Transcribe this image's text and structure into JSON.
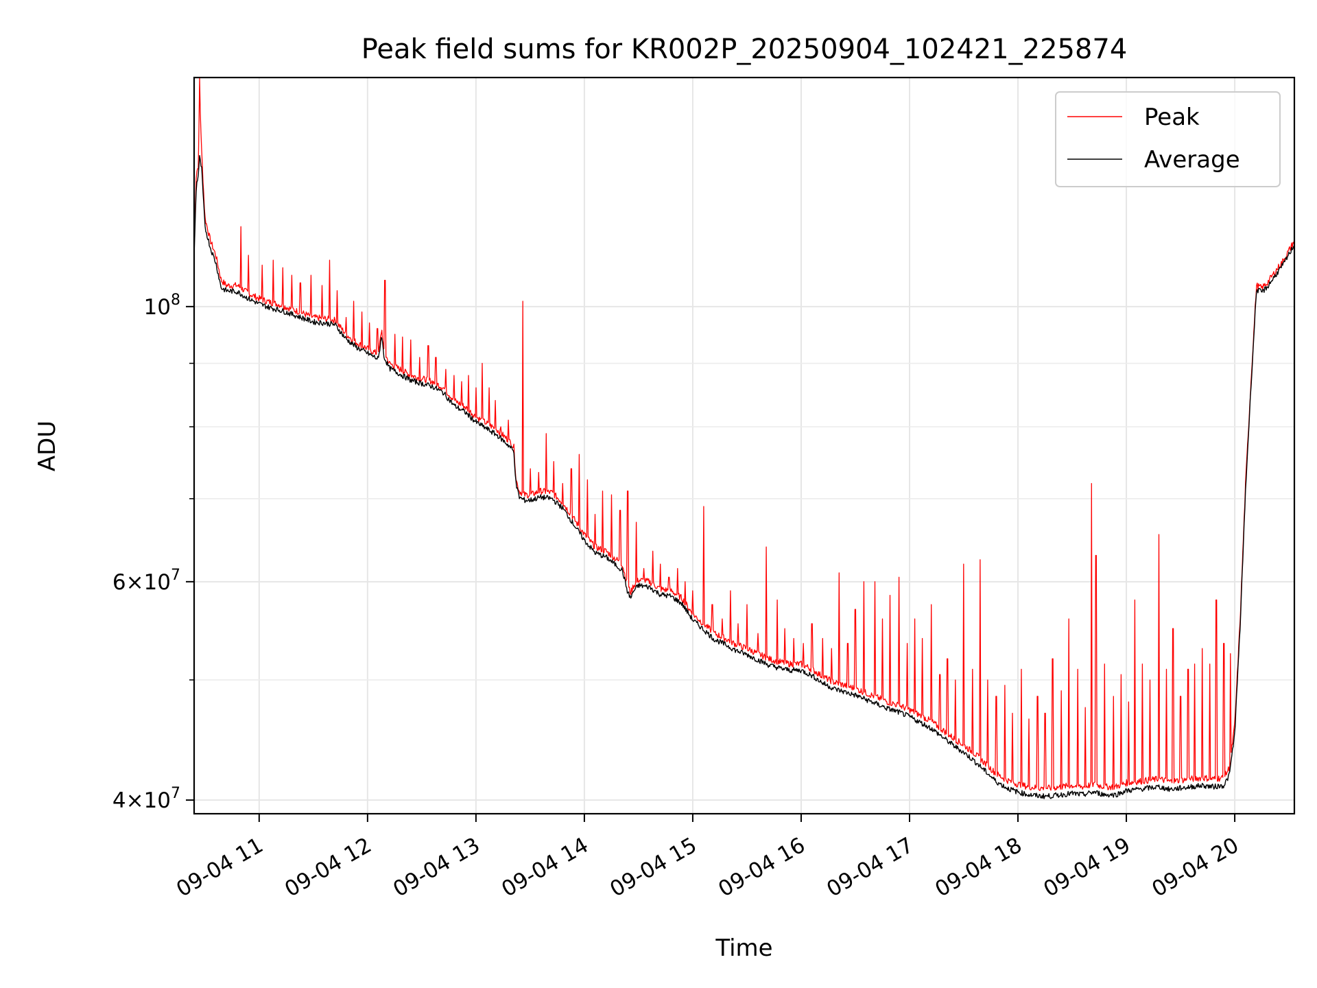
{
  "chart_data": {
    "type": "line",
    "title": "Peak field sums for KR002P_20250904_102421_225874",
    "xlabel": "Time",
    "ylabel": "ADU",
    "x_unit": "hours (2025-09-04 local time)",
    "xlim": [
      10.4,
      20.55
    ],
    "ylim": [
      39000000,
      153000000
    ],
    "yscale": "log",
    "grid": true,
    "x_ticks": [
      {
        "value": 11,
        "label": "09-04 11"
      },
      {
        "value": 12,
        "label": "09-04 12"
      },
      {
        "value": 13,
        "label": "09-04 13"
      },
      {
        "value": 14,
        "label": "09-04 14"
      },
      {
        "value": 15,
        "label": "09-04 15"
      },
      {
        "value": 16,
        "label": "09-04 16"
      },
      {
        "value": 17,
        "label": "09-04 17"
      },
      {
        "value": 18,
        "label": "09-04 18"
      },
      {
        "value": 19,
        "label": "09-04 19"
      },
      {
        "value": 20,
        "label": "09-04 20"
      }
    ],
    "y_ticks": [
      {
        "value": 40000000,
        "base": "4×10",
        "exp": "7"
      },
      {
        "value": 60000000,
        "base": "6×10",
        "exp": "7"
      },
      {
        "value": 100000000,
        "base": "10",
        "exp": "8"
      }
    ],
    "y_minor_ticks": [
      50000000,
      70000000,
      80000000,
      90000000
    ],
    "legend": {
      "position": "top-right"
    },
    "series": [
      {
        "name": "Peak",
        "color": "#ff0000",
        "x": [
          10.4,
          10.42,
          10.44,
          10.45,
          10.47,
          10.5,
          10.55,
          10.6,
          10.65,
          10.7,
          10.8,
          10.9,
          11.0,
          11.1,
          11.2,
          11.3,
          11.4,
          11.5,
          11.6,
          11.7,
          11.8,
          11.9,
          12.0,
          12.1,
          12.13,
          12.15,
          12.2,
          12.3,
          12.4,
          12.5,
          12.6,
          12.7,
          12.8,
          12.9,
          13.0,
          13.1,
          13.2,
          13.3,
          13.33,
          13.35,
          13.37,
          13.4,
          13.42,
          13.45,
          13.5,
          13.6,
          13.7,
          13.8,
          13.9,
          14.0,
          14.1,
          14.2,
          14.3,
          14.35,
          14.4,
          14.43,
          14.45,
          14.5,
          14.6,
          14.7,
          14.8,
          14.9,
          15.0,
          15.1,
          15.2,
          15.3,
          15.4,
          15.5,
          15.6,
          15.7,
          15.8,
          15.9,
          16.0,
          16.1,
          16.2,
          16.3,
          16.4,
          16.5,
          16.6,
          16.7,
          16.8,
          16.9,
          17.0,
          17.1,
          17.2,
          17.3,
          17.4,
          17.5,
          17.6,
          17.7,
          17.8,
          17.9,
          18.0,
          18.1,
          18.2,
          18.3,
          18.4,
          18.5,
          18.6,
          18.7,
          18.8,
          18.9,
          19.0,
          19.1,
          19.2,
          19.3,
          19.4,
          19.5,
          19.6,
          19.7,
          19.8,
          19.9,
          19.95,
          20.0,
          20.05,
          20.1,
          20.15,
          20.2,
          20.25,
          20.3,
          20.35,
          20.4,
          20.45,
          20.5,
          20.55
        ],
        "y": [
          112000000,
          128000000,
          130000000,
          150000000,
          133000000,
          118000000,
          113000000,
          110000000,
          105000000,
          104000000,
          104000000,
          102500000,
          101500000,
          100800000,
          100300000,
          99500000,
          98800000,
          98000000,
          97800000,
          97500000,
          95000000,
          93500000,
          92500000,
          91500000,
          96000000,
          92000000,
          90000000,
          89000000,
          88000000,
          87500000,
          87000000,
          86000000,
          84000000,
          83000000,
          81500000,
          80500000,
          79500000,
          78000000,
          77500000,
          77000000,
          72500000,
          71000000,
          70800000,
          70500000,
          70500000,
          71000000,
          70800000,
          69500000,
          67500000,
          65500000,
          64000000,
          63500000,
          62500000,
          62000000,
          59500000,
          58800000,
          59500000,
          60200000,
          60000000,
          59200000,
          59000000,
          58200000,
          56500000,
          55500000,
          54500000,
          54000000,
          53400000,
          53000000,
          52500000,
          52000000,
          51700000,
          51500000,
          51500000,
          51000000,
          50300000,
          49800000,
          49500000,
          49200000,
          48800000,
          48400000,
          48000000,
          47700000,
          47300000,
          46800000,
          46300000,
          45600000,
          44900000,
          44300000,
          43600000,
          42800000,
          42000000,
          41500000,
          41200000,
          41000000,
          40900000,
          40900000,
          41000000,
          41100000,
          41000000,
          41200000,
          41000000,
          41000000,
          41300000,
          41400000,
          41500000,
          41600000,
          41400000,
          41500000,
          41600000,
          41700000,
          41600000,
          41700000,
          42500000,
          46000000,
          56000000,
          72000000,
          87000000,
          104000000,
          103500000,
          104500000,
          106000000,
          107500000,
          109000000,
          111000000,
          113000000
        ]
      },
      {
        "name": "Average",
        "color": "#000000",
        "x": [
          10.4,
          10.42,
          10.44,
          10.45,
          10.47,
          10.5,
          10.55,
          10.6,
          10.65,
          10.7,
          10.8,
          10.9,
          11.0,
          11.1,
          11.2,
          11.3,
          11.4,
          11.5,
          11.6,
          11.7,
          11.8,
          11.9,
          12.0,
          12.1,
          12.13,
          12.15,
          12.2,
          12.3,
          12.4,
          12.5,
          12.6,
          12.7,
          12.8,
          12.9,
          13.0,
          13.1,
          13.2,
          13.3,
          13.33,
          13.35,
          13.37,
          13.4,
          13.42,
          13.45,
          13.5,
          13.6,
          13.7,
          13.8,
          13.9,
          14.0,
          14.1,
          14.2,
          14.3,
          14.35,
          14.4,
          14.43,
          14.45,
          14.5,
          14.6,
          14.7,
          14.8,
          14.9,
          15.0,
          15.1,
          15.2,
          15.3,
          15.4,
          15.5,
          15.6,
          15.7,
          15.8,
          15.9,
          16.0,
          16.1,
          16.2,
          16.3,
          16.4,
          16.5,
          16.6,
          16.7,
          16.8,
          16.9,
          17.0,
          17.1,
          17.2,
          17.3,
          17.4,
          17.5,
          17.6,
          17.7,
          17.8,
          17.9,
          18.0,
          18.1,
          18.2,
          18.3,
          18.4,
          18.5,
          18.6,
          18.7,
          18.8,
          18.9,
          19.0,
          19.1,
          19.2,
          19.3,
          19.4,
          19.5,
          19.6,
          19.7,
          19.8,
          19.9,
          19.95,
          20.0,
          20.05,
          20.1,
          20.15,
          20.2,
          20.25,
          20.3,
          20.35,
          20.4,
          20.45,
          20.5,
          20.55
        ],
        "y": [
          110000000,
          125000000,
          128000000,
          132000000,
          129000000,
          116000000,
          111500000,
          108500000,
          103500000,
          103000000,
          102800000,
          101500000,
          100500000,
          99800000,
          99300000,
          98600000,
          97900000,
          97200000,
          97000000,
          96700000,
          94200000,
          92700000,
          91700000,
          90700000,
          95000000,
          91200000,
          89200000,
          88200000,
          87200000,
          86700000,
          86200000,
          85200000,
          83200000,
          82200000,
          80700000,
          79700000,
          78700000,
          77300000,
          76800000,
          76300000,
          71800000,
          70200000,
          70000000,
          69800000,
          69800000,
          70200000,
          70000000,
          68800000,
          66800000,
          64800000,
          63300000,
          62800000,
          61800000,
          61300000,
          58800000,
          58200000,
          58900000,
          59600000,
          59400000,
          58600000,
          58400000,
          57600000,
          55900000,
          54900000,
          53900000,
          53400000,
          52800000,
          52400000,
          51900000,
          51400000,
          51100000,
          50900000,
          50900000,
          50400000,
          49700000,
          49200000,
          48900000,
          48600000,
          48200000,
          47800000,
          47400000,
          47100000,
          46700000,
          46200000,
          45700000,
          45000000,
          44300000,
          43700000,
          43000000,
          42200000,
          41400000,
          40900000,
          40600000,
          40400000,
          40300000,
          40300000,
          40400000,
          40500000,
          40400000,
          40600000,
          40400000,
          40400000,
          40700000,
          40800000,
          40900000,
          41000000,
          40800000,
          40900000,
          41000000,
          41100000,
          41000000,
          41100000,
          41900000,
          45300000,
          55300000,
          71200000,
          86200000,
          103200000,
          102700000,
          103700000,
          105200000,
          106700000,
          108200000,
          110200000,
          112200000
        ]
      }
    ],
    "spikes": {
      "x": [
        10.45,
        10.83,
        10.9,
        11.03,
        11.13,
        11.22,
        11.3,
        11.38,
        11.48,
        11.58,
        11.65,
        11.72,
        11.8,
        11.87,
        11.95,
        12.02,
        12.09,
        12.16,
        12.25,
        12.32,
        12.4,
        12.48,
        12.56,
        12.63,
        12.72,
        12.8,
        12.87,
        12.93,
        13.0,
        13.06,
        13.12,
        13.18,
        13.23,
        13.3,
        13.43,
        13.5,
        13.58,
        13.65,
        13.72,
        13.8,
        13.88,
        13.95,
        14.03,
        14.1,
        14.17,
        14.25,
        14.33,
        14.4,
        14.48,
        14.55,
        14.63,
        14.7,
        14.78,
        14.86,
        14.93,
        15.0,
        15.1,
        15.18,
        15.27,
        15.35,
        15.42,
        15.5,
        15.6,
        15.68,
        15.78,
        15.85,
        15.93,
        16.02,
        16.1,
        16.2,
        16.28,
        16.35,
        16.43,
        16.5,
        16.58,
        16.68,
        16.75,
        16.82,
        16.9,
        16.98,
        17.05,
        17.12,
        17.2,
        17.28,
        17.35,
        17.42,
        17.5,
        17.58,
        17.65,
        17.72,
        17.8,
        17.88,
        17.95,
        18.03,
        18.1,
        18.18,
        18.25,
        18.32,
        18.4,
        18.47,
        18.55,
        18.62,
        18.68,
        18.72,
        18.8,
        18.88,
        18.95,
        19.02,
        19.08,
        19.15,
        19.22,
        19.3,
        19.37,
        19.43,
        19.5,
        19.57,
        19.63,
        19.7,
        19.77,
        19.83,
        19.9,
        19.96
      ],
      "y": [
        153000000,
        116000000,
        110000000,
        108000000,
        109000000,
        107500000,
        106000000,
        104500000,
        106000000,
        104000000,
        109000000,
        103000000,
        98000000,
        101000000,
        99000000,
        97000000,
        96000000,
        105000000,
        95000000,
        94500000,
        94000000,
        91000000,
        93000000,
        91000000,
        89000000,
        88000000,
        87000000,
        88000000,
        86000000,
        90000000,
        86000000,
        84000000,
        80000000,
        81000000,
        101000000,
        74000000,
        73500000,
        79000000,
        75000000,
        72000000,
        74000000,
        76000000,
        72500000,
        68000000,
        71000000,
        70500000,
        68500000,
        71000000,
        67000000,
        61500000,
        63500000,
        62000000,
        60500000,
        61500000,
        60000000,
        59000000,
        69000000,
        57500000,
        56000000,
        59000000,
        55500000,
        57500000,
        54500000,
        64000000,
        58000000,
        55000000,
        54000000,
        53500000,
        55500000,
        54000000,
        53000000,
        61000000,
        53500000,
        57000000,
        60000000,
        60000000,
        56000000,
        58500000,
        60500000,
        53500000,
        56000000,
        54000000,
        57500000,
        50500000,
        52000000,
        50000000,
        62000000,
        51000000,
        62500000,
        50000000,
        48500000,
        49500000,
        47000000,
        51000000,
        46500000,
        48500000,
        47000000,
        52000000,
        49000000,
        56000000,
        51000000,
        47500000,
        72000000,
        63000000,
        51500000,
        48500000,
        50500000,
        48000000,
        58000000,
        51500000,
        50000000,
        65500000,
        51000000,
        55000000,
        48500000,
        51000000,
        51500000,
        53000000,
        51500000,
        58000000,
        53500000,
        52500000
      ]
    }
  }
}
